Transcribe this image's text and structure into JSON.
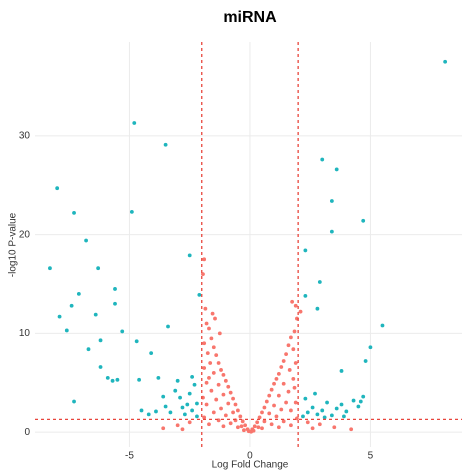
{
  "chart_data": {
    "type": "scatter",
    "title": "miRNA",
    "x_label": "Log Fold Change",
    "y_label": "-log10 P-value",
    "xlim": [
      -8.92,
      8.8
    ],
    "ylim": [
      -1.5,
      39.5
    ],
    "xticks": [
      -5,
      0,
      5
    ],
    "yticks": [
      0,
      10,
      20,
      30
    ],
    "grid": true,
    "thresholds": {
      "x": [
        -2,
        2
      ],
      "y": 1.3,
      "color": "#e8453c"
    },
    "series": [
      {
        "color": "#1fb5bd",
        "x": [
          8.1,
          -8.0,
          -4.8,
          -3.5,
          -4.9,
          -7.3,
          -6.8,
          -8.3,
          -6.3,
          -7.1,
          -5.6,
          -7.4,
          -5.6,
          -7.9,
          -6.4,
          -5.3,
          -7.6,
          -3.4,
          -4.7,
          -6.7,
          -6.2,
          -6.2,
          -4.1,
          -2.5,
          -2.1,
          -5.9,
          -5.7,
          -5.5,
          -4.6,
          -3.8,
          -7.3,
          3.0,
          3.6,
          3.4,
          3.4,
          4.7,
          2.3,
          2.9,
          2.3,
          2.8,
          5.5,
          5.0,
          4.8,
          3.8,
          -2.2,
          -2.4,
          -2.6,
          -2.9,
          -3.1,
          -2.3,
          -2.7,
          -3.3,
          -3.5,
          -3.9,
          -4.2,
          -4.5,
          -2.5,
          -3.0,
          -2.2,
          -2.8,
          -3.6,
          -2.4,
          2.2,
          2.4,
          2.6,
          2.8,
          3.0,
          3.2,
          3.4,
          3.6,
          3.8,
          4.0,
          4.3,
          4.5,
          4.7,
          2.3,
          2.7,
          3.1,
          3.9,
          4.6
        ],
        "values": [
          37.5,
          24.7,
          31.3,
          29.1,
          22.3,
          22.2,
          19.4,
          16.6,
          16.6,
          14.0,
          14.5,
          12.8,
          13.0,
          11.7,
          11.9,
          10.2,
          10.3,
          10.7,
          9.2,
          8.4,
          9.3,
          6.6,
          8.0,
          17.9,
          13.9,
          5.5,
          5.2,
          5.3,
          5.3,
          5.5,
          3.1,
          27.6,
          26.6,
          23.4,
          20.3,
          21.4,
          18.4,
          15.2,
          13.8,
          12.5,
          10.8,
          8.6,
          7.2,
          6.2,
          1.6,
          2.2,
          2.8,
          3.5,
          4.2,
          4.8,
          1.8,
          2.0,
          2.6,
          2.1,
          1.8,
          2.2,
          3.9,
          5.2,
          2.9,
          2.5,
          3.6,
          5.6,
          1.6,
          2.0,
          2.5,
          1.8,
          2.2,
          3.0,
          1.7,
          2.4,
          2.8,
          2.1,
          3.2,
          2.6,
          3.6,
          3.4,
          3.9,
          1.5,
          1.6,
          3.1
        ]
      },
      {
        "color": "#f8766d",
        "x": [
          -1.9,
          -1.95,
          -1.85,
          -1.8,
          -1.7,
          -1.9,
          -1.6,
          -1.5,
          -1.75,
          -1.4,
          -1.3,
          -1.65,
          -1.2,
          -1.1,
          -1.9,
          -1.5,
          -1.0,
          -0.9,
          -1.8,
          -1.3,
          -0.8,
          -0.7,
          -1.6,
          -1.1,
          -0.6,
          -0.5,
          -1.4,
          -0.9,
          -0.4,
          -0.3,
          -1.2,
          -0.7,
          -0.2,
          -0.1,
          -1.8,
          -1.5,
          -1.0,
          -0.6,
          -0.35,
          -1.9,
          -1.3,
          -0.8,
          -0.5,
          -1.7,
          -1.1,
          -0.25,
          -2.5,
          -3.0,
          -3.6,
          -2.8,
          -0.05,
          -1.95,
          -1.7,
          -1.55,
          -1.25,
          -1.45,
          1.9,
          1.95,
          1.85,
          1.7,
          1.8,
          1.6,
          1.5,
          1.4,
          1.3,
          1.9,
          1.2,
          1.1,
          1.65,
          1.0,
          0.9,
          1.8,
          1.4,
          0.8,
          0.7,
          1.6,
          1.2,
          0.6,
          0.5,
          1.5,
          1.0,
          0.4,
          0.3,
          1.3,
          0.8,
          0.2,
          0.1,
          1.9,
          1.7,
          1.1,
          0.6,
          0.35,
          1.95,
          1.4,
          0.9,
          0.5,
          1.7,
          1.2,
          0.15,
          2.4,
          2.9,
          3.5,
          4.2,
          2.6,
          0.05,
          1.85,
          1.75,
          2.1
        ],
        "values": [
          17.5,
          16,
          12.5,
          11,
          10.5,
          9,
          9.5,
          8.6,
          8,
          7.8,
          7,
          7,
          6.3,
          5.8,
          6.5,
          6,
          5.2,
          4.6,
          5,
          4.8,
          4,
          3.4,
          4.2,
          3.8,
          2.8,
          2.2,
          3.3,
          2.9,
          1.6,
          1.1,
          2.4,
          2,
          0.7,
          0.3,
          2.8,
          2,
          1.7,
          1.2,
          0.6,
          1.5,
          1.2,
          0.9,
          0.5,
          0.8,
          0.6,
          0.2,
          1.0,
          0.7,
          0.4,
          0.3,
          0.1,
          3.5,
          5.5,
          12,
          10,
          11.5,
          12.8,
          11.5,
          10.2,
          9.6,
          8.4,
          8.8,
          7.9,
          7.2,
          6.6,
          7,
          5.9,
          5.4,
          6.3,
          4.9,
          4.3,
          5.4,
          4.9,
          3.7,
          3.1,
          4.1,
          3.7,
          2.5,
          2,
          3,
          2.7,
          1.5,
          1,
          2.3,
          1.9,
          0.6,
          0.3,
          3,
          2.2,
          1.6,
          1.1,
          0.5,
          1.4,
          1.1,
          0.8,
          0.4,
          0.7,
          0.5,
          0.15,
          1.0,
          0.8,
          0.5,
          0.3,
          0.4,
          0.05,
          4.5,
          13.2,
          12.2
        ]
      }
    ]
  }
}
